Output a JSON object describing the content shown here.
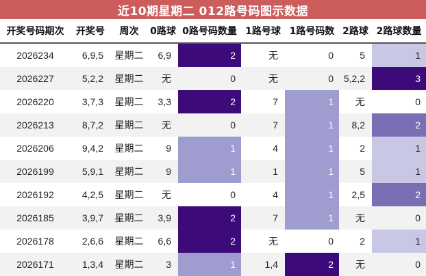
{
  "title": "近10期星期二 012路号码图示数据",
  "headers": [
    "开奖号码期次",
    "开奖号",
    "周次",
    "0路球",
    "0路号码数量",
    "1路号球",
    "1路号码数",
    "2路球",
    "2路球数量"
  ],
  "colors": {
    "title_bg": "#cd5c5c",
    "count_3": "#3d0a7a",
    "count_2_dark": "#3d0a7a",
    "count_2_mid": "#7a6fb5",
    "count_1_light": "#9f9ccf",
    "count_1_pale": "#c8c7e6"
  },
  "rows": [
    {
      "issue": "2026234",
      "numbers": "6,9,5",
      "weekday": "星期二",
      "r0": "6,9",
      "r0n": "2",
      "r1": "无",
      "r1n": "0",
      "r2": "5",
      "r2n": "1"
    },
    {
      "issue": "2026227",
      "numbers": "5,2,2",
      "weekday": "星期二",
      "r0": "无",
      "r0n": "0",
      "r1": "无",
      "r1n": "0",
      "r2": "5,2,2",
      "r2n": "3"
    },
    {
      "issue": "2026220",
      "numbers": "3,7,3",
      "weekday": "星期二",
      "r0": "3,3",
      "r0n": "2",
      "r1": "7",
      "r1n": "1",
      "r2": "无",
      "r2n": "0"
    },
    {
      "issue": "2026213",
      "numbers": "8,7,2",
      "weekday": "星期二",
      "r0": "无",
      "r0n": "0",
      "r1": "7",
      "r1n": "1",
      "r2": "8,2",
      "r2n": "2"
    },
    {
      "issue": "2026206",
      "numbers": "9,4,2",
      "weekday": "星期二",
      "r0": "9",
      "r0n": "1",
      "r1": "4",
      "r1n": "1",
      "r2": "2",
      "r2n": "1"
    },
    {
      "issue": "2026199",
      "numbers": "5,9,1",
      "weekday": "星期二",
      "r0": "9",
      "r0n": "1",
      "r1": "1",
      "r1n": "1",
      "r2": "5",
      "r2n": "1"
    },
    {
      "issue": "2026192",
      "numbers": "4,2,5",
      "weekday": "星期二",
      "r0": "无",
      "r0n": "0",
      "r1": "4",
      "r1n": "1",
      "r2": "2,5",
      "r2n": "2"
    },
    {
      "issue": "2026185",
      "numbers": "3,9,7",
      "weekday": "星期二",
      "r0": "3,9",
      "r0n": "2",
      "r1": "7",
      "r1n": "1",
      "r2": "无",
      "r2n": "0"
    },
    {
      "issue": "2026178",
      "numbers": "2,6,6",
      "weekday": "星期二",
      "r0": "6,6",
      "r0n": "2",
      "r1": "无",
      "r1n": "0",
      "r2": "2",
      "r2n": "1"
    },
    {
      "issue": "2026171",
      "numbers": "1,3,4",
      "weekday": "星期二",
      "r0": "3",
      "r0n": "1",
      "r1": "1,4",
      "r1n": "2",
      "r2": "无",
      "r2n": "0"
    }
  ]
}
